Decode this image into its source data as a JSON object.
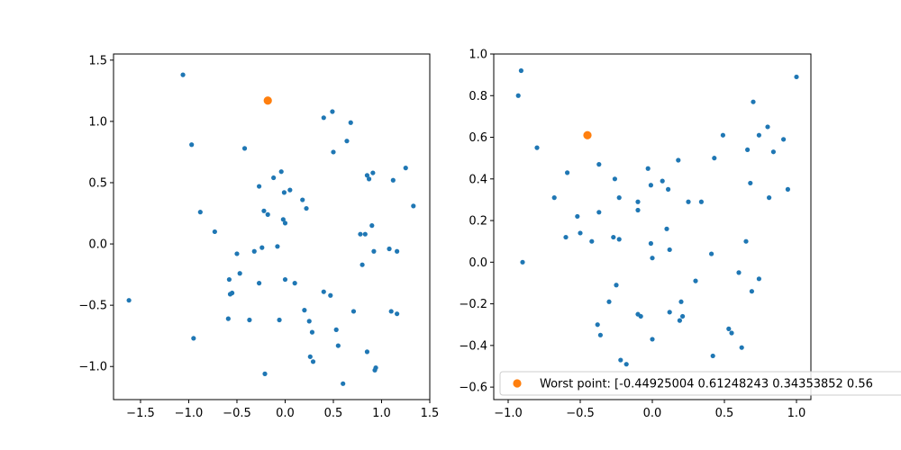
{
  "chart_data": [
    {
      "type": "scatter",
      "title": "",
      "xlabel": "",
      "ylabel": "",
      "xlim": [
        -1.78,
        1.5
      ],
      "ylim": [
        -1.27,
        1.55
      ],
      "xticks": [
        -1.5,
        -1.0,
        -0.5,
        0.0,
        0.5,
        1.0,
        1.5
      ],
      "xtick_labels": [
        "−1.5",
        "−1.0",
        "−0.5",
        "0.0",
        "0.5",
        "1.0",
        "1.5"
      ],
      "yticks": [
        -1.0,
        -0.5,
        0.0,
        0.5,
        1.0,
        1.5
      ],
      "ytick_labels": [
        "−1.0",
        "−0.5",
        "0.0",
        "0.5",
        "1.0",
        "1.5"
      ],
      "grid": false,
      "series": [
        {
          "color": "#1f77b4",
          "x": [
            -1.06,
            -0.97,
            -0.88,
            -0.73,
            -0.42,
            -0.27,
            -0.22,
            -0.12,
            -0.04,
            -0.01,
            -0.02,
            0.0,
            0.05,
            0.18,
            0.22,
            0.4,
            0.49,
            0.5,
            0.64,
            0.68,
            0.78,
            0.85,
            0.87,
            0.91,
            0.9,
            1.12,
            1.25,
            1.33,
            -1.62,
            -0.95,
            -0.5,
            -0.47,
            -0.58,
            -0.55,
            -0.57,
            -0.59,
            -0.37,
            -0.32,
            -0.27,
            -0.24,
            -0.21,
            -0.08,
            -0.06,
            0.0,
            0.1,
            0.2,
            0.25,
            0.28,
            0.26,
            0.29,
            0.4,
            0.47,
            0.53,
            0.55,
            0.6,
            0.71,
            0.8,
            0.83,
            0.85,
            0.93,
            0.94,
            0.92,
            1.08,
            1.1,
            1.16,
            1.16,
            -0.18
          ],
          "y": [
            1.38,
            0.81,
            0.26,
            0.1,
            0.78,
            0.47,
            0.27,
            0.54,
            0.59,
            0.42,
            0.2,
            0.17,
            0.44,
            0.36,
            0.29,
            1.03,
            1.08,
            0.75,
            0.84,
            0.99,
            0.08,
            0.56,
            0.53,
            0.58,
            0.15,
            0.52,
            0.62,
            0.31,
            -0.46,
            -0.77,
            -0.08,
            -0.24,
            -0.29,
            -0.4,
            -0.41,
            -0.61,
            -0.62,
            -0.06,
            -0.32,
            -0.03,
            -1.06,
            -0.02,
            -0.62,
            -0.29,
            -0.32,
            -0.54,
            -0.63,
            -0.72,
            -0.92,
            -0.96,
            -0.39,
            -0.42,
            -0.7,
            -0.83,
            -1.14,
            -0.55,
            -0.17,
            0.08,
            -0.88,
            -1.03,
            -1.01,
            -0.06,
            -0.04,
            -0.55,
            -0.06,
            -0.57,
            0.24
          ],
          "marker_size": "small"
        },
        {
          "color": "#ff7f0e",
          "x": [
            -0.18
          ],
          "y": [
            1.17
          ],
          "marker_size": "large"
        }
      ]
    },
    {
      "type": "scatter",
      "title": "",
      "xlabel": "",
      "ylabel": "",
      "xlim": [
        -1.1,
        1.1
      ],
      "ylim": [
        -0.66,
        1.0
      ],
      "xticks": [
        -1.0,
        -0.5,
        0.0,
        0.5,
        1.0
      ],
      "xtick_labels": [
        "−1.0",
        "−0.5",
        "0.0",
        "0.5",
        "1.0"
      ],
      "yticks": [
        -0.6,
        -0.4,
        -0.2,
        0.0,
        0.2,
        0.4,
        0.6,
        0.8,
        1.0
      ],
      "ytick_labels": [
        "−0.6",
        "−0.4",
        "−0.2",
        "0.0",
        "0.2",
        "0.4",
        "0.6",
        "0.8",
        "1.0"
      ],
      "grid": false,
      "legend": {
        "placement": "lower-right",
        "entries": [
          "Worst point: [-0.44925004  0.61248243  0.34353852  0.56"
        ]
      },
      "series": [
        {
          "color": "#1f77b4",
          "x": [
            -0.91,
            -0.93,
            -0.9,
            -0.8,
            -0.68,
            -0.59,
            -0.52,
            -0.6,
            -0.5,
            -0.42,
            -0.37,
            -0.37,
            -0.3,
            -0.27,
            -0.26,
            -0.23,
            -0.23,
            -0.25,
            -0.38,
            -0.36,
            -0.22,
            -0.18,
            -0.1,
            -0.08,
            -0.1,
            -0.1,
            -0.03,
            -0.01,
            0.0,
            0.0,
            -0.01,
            0.07,
            0.1,
            0.12,
            0.11,
            0.12,
            0.18,
            0.2,
            0.21,
            0.19,
            0.25,
            0.3,
            0.34,
            0.41,
            0.43,
            0.49,
            0.53,
            0.55,
            0.6,
            0.62,
            0.65,
            0.66,
            0.68,
            0.69,
            0.7,
            0.74,
            0.74,
            0.81,
            0.8,
            0.84,
            0.91,
            0.94,
            1.0,
            0.42
          ],
          "y": [
            0.92,
            0.8,
            0.0,
            0.55,
            0.31,
            0.43,
            0.22,
            0.12,
            0.14,
            0.1,
            0.47,
            0.24,
            -0.19,
            0.12,
            0.4,
            0.11,
            0.31,
            -0.11,
            -0.3,
            -0.35,
            -0.47,
            -0.49,
            -0.25,
            -0.26,
            0.29,
            0.25,
            0.45,
            0.09,
            0.02,
            -0.37,
            0.37,
            0.39,
            0.16,
            -0.24,
            0.35,
            0.06,
            0.49,
            -0.19,
            -0.26,
            -0.28,
            0.29,
            -0.09,
            0.29,
            0.04,
            0.5,
            0.61,
            -0.32,
            -0.34,
            -0.05,
            -0.41,
            0.1,
            0.54,
            0.38,
            -0.14,
            0.77,
            -0.08,
            0.61,
            0.31,
            0.65,
            0.53,
            0.59,
            0.35,
            0.89,
            -0.45
          ],
          "marker_size": "small"
        },
        {
          "name": "Worst point: [-0.44925004  0.61248243  0.34353852  0.56",
          "color": "#ff7f0e",
          "x": [
            -0.45
          ],
          "y": [
            0.61
          ],
          "marker_size": "large"
        }
      ]
    }
  ]
}
